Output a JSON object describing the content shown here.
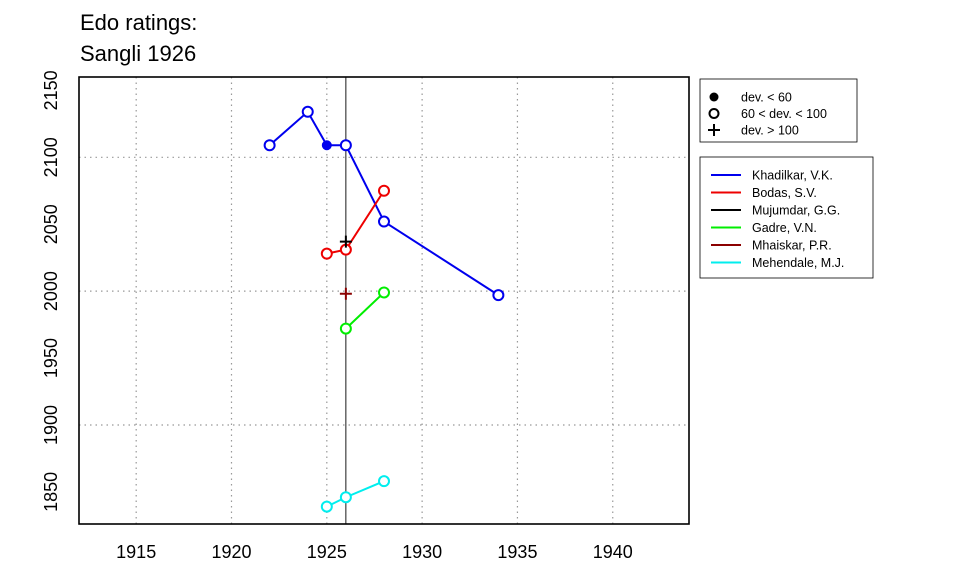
{
  "chart_data": {
    "type": "line",
    "title_lines": [
      "Edo ratings:",
      "Sangli 1926"
    ],
    "xlabel": "",
    "ylabel": "",
    "xlim": [
      1912,
      1944
    ],
    "ylim": [
      1826,
      2160
    ],
    "x_ticks": [
      1915,
      1920,
      1925,
      1930,
      1935,
      1940
    ],
    "y_ticks": [
      1850,
      1900,
      1950,
      2000,
      2050,
      2100,
      2150
    ],
    "grid": "dotted",
    "reference_line_x": 1926,
    "marker_legend": [
      {
        "label": "dev. < 60",
        "marker": "filled-circle"
      },
      {
        "label": "60 < dev. < 100",
        "marker": "open-circle"
      },
      {
        "label": "dev. > 100",
        "marker": "plus"
      }
    ],
    "series": [
      {
        "name": "Khadilkar, V.K.",
        "color": "#0000ee",
        "points": [
          {
            "x": 1922,
            "y": 2109,
            "marker": "open"
          },
          {
            "x": 1924,
            "y": 2134,
            "marker": "open"
          },
          {
            "x": 1925,
            "y": 2109,
            "marker": "filled"
          },
          {
            "x": 1926,
            "y": 2109,
            "marker": "open"
          },
          {
            "x": 1928,
            "y": 2052,
            "marker": "open"
          },
          {
            "x": 1934,
            "y": 1997,
            "marker": "open"
          }
        ]
      },
      {
        "name": "Bodas, S.V.",
        "color": "#ee0000",
        "points": [
          {
            "x": 1925,
            "y": 2028,
            "marker": "open"
          },
          {
            "x": 1926,
            "y": 2031,
            "marker": "open"
          },
          {
            "x": 1928,
            "y": 2075,
            "marker": "open"
          }
        ]
      },
      {
        "name": "Mujumdar, G.G.",
        "color": "#000000",
        "points": [
          {
            "x": 1926,
            "y": 2037,
            "marker": "plus"
          }
        ]
      },
      {
        "name": "Gadre, V.N.",
        "color": "#00ee00",
        "points": [
          {
            "x": 1926,
            "y": 1972,
            "marker": "open"
          },
          {
            "x": 1928,
            "y": 1999,
            "marker": "open"
          }
        ]
      },
      {
        "name": "Mhaiskar, P.R.",
        "color": "#8b0000",
        "points": [
          {
            "x": 1926,
            "y": 1998,
            "marker": "plus"
          }
        ]
      },
      {
        "name": "Mehendale, M.J.",
        "color": "#00eeee",
        "points": [
          {
            "x": 1925,
            "y": 1839,
            "marker": "open"
          },
          {
            "x": 1926,
            "y": 1846,
            "marker": "open"
          },
          {
            "x": 1928,
            "y": 1858,
            "marker": "open"
          }
        ]
      }
    ]
  }
}
